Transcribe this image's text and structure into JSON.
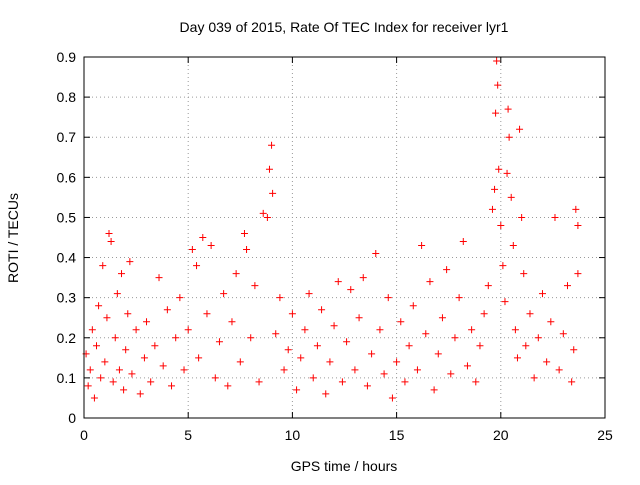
{
  "chart_data": {
    "type": "scatter",
    "title": "Day 039 of 2015, Rate Of TEC Index for receiver lyr1",
    "xlabel": "GPS time / hours",
    "ylabel": "ROTI / TECUs",
    "xlim": [
      0,
      25
    ],
    "ylim": [
      0,
      0.9
    ],
    "xticks": [
      "0",
      "5",
      "10",
      "15",
      "20",
      "25"
    ],
    "yticks": [
      "0",
      "0.1",
      "0.2",
      "0.3",
      "0.4",
      "0.5",
      "0.6",
      "0.7",
      "0.8",
      "0.9"
    ],
    "grid": true,
    "marker": "+",
    "color": "#ff0000",
    "note": "Dense scatter of ROTI samples through the day; representative sampled points listed.",
    "points": [
      [
        0.1,
        0.16
      ],
      [
        0.2,
        0.08
      ],
      [
        0.3,
        0.12
      ],
      [
        0.4,
        0.22
      ],
      [
        0.5,
        0.05
      ],
      [
        0.6,
        0.18
      ],
      [
        0.7,
        0.28
      ],
      [
        0.8,
        0.1
      ],
      [
        0.9,
        0.38
      ],
      [
        1.0,
        0.14
      ],
      [
        1.1,
        0.25
      ],
      [
        1.2,
        0.46
      ],
      [
        1.3,
        0.44
      ],
      [
        1.4,
        0.09
      ],
      [
        1.5,
        0.2
      ],
      [
        1.6,
        0.31
      ],
      [
        1.7,
        0.12
      ],
      [
        1.8,
        0.36
      ],
      [
        1.9,
        0.07
      ],
      [
        2.0,
        0.17
      ],
      [
        2.1,
        0.26
      ],
      [
        2.2,
        0.39
      ],
      [
        2.3,
        0.11
      ],
      [
        2.5,
        0.22
      ],
      [
        2.7,
        0.06
      ],
      [
        2.9,
        0.15
      ],
      [
        3.0,
        0.24
      ],
      [
        3.2,
        0.09
      ],
      [
        3.4,
        0.18
      ],
      [
        3.6,
        0.35
      ],
      [
        3.8,
        0.13
      ],
      [
        4.0,
        0.27
      ],
      [
        4.2,
        0.08
      ],
      [
        4.4,
        0.2
      ],
      [
        4.6,
        0.3
      ],
      [
        4.8,
        0.12
      ],
      [
        5.0,
        0.22
      ],
      [
        5.2,
        0.42
      ],
      [
        5.4,
        0.38
      ],
      [
        5.5,
        0.15
      ],
      [
        5.7,
        0.45
      ],
      [
        5.9,
        0.26
      ],
      [
        6.1,
        0.43
      ],
      [
        6.3,
        0.1
      ],
      [
        6.5,
        0.19
      ],
      [
        6.7,
        0.31
      ],
      [
        6.9,
        0.08
      ],
      [
        7.1,
        0.24
      ],
      [
        7.3,
        0.36
      ],
      [
        7.5,
        0.14
      ],
      [
        7.7,
        0.46
      ],
      [
        7.8,
        0.42
      ],
      [
        8.0,
        0.2
      ],
      [
        8.2,
        0.33
      ],
      [
        8.4,
        0.09
      ],
      [
        8.6,
        0.51
      ],
      [
        8.8,
        0.5
      ],
      [
        8.9,
        0.62
      ],
      [
        9.0,
        0.68
      ],
      [
        9.05,
        0.56
      ],
      [
        9.2,
        0.21
      ],
      [
        9.4,
        0.3
      ],
      [
        9.6,
        0.12
      ],
      [
        9.8,
        0.17
      ],
      [
        10.0,
        0.26
      ],
      [
        10.2,
        0.07
      ],
      [
        10.4,
        0.15
      ],
      [
        10.6,
        0.22
      ],
      [
        10.8,
        0.31
      ],
      [
        11.0,
        0.1
      ],
      [
        11.2,
        0.18
      ],
      [
        11.4,
        0.27
      ],
      [
        11.6,
        0.06
      ],
      [
        11.8,
        0.14
      ],
      [
        12.0,
        0.23
      ],
      [
        12.2,
        0.34
      ],
      [
        12.4,
        0.09
      ],
      [
        12.6,
        0.19
      ],
      [
        12.8,
        0.32
      ],
      [
        13.0,
        0.12
      ],
      [
        13.2,
        0.25
      ],
      [
        13.4,
        0.35
      ],
      [
        13.6,
        0.08
      ],
      [
        13.8,
        0.16
      ],
      [
        14.0,
        0.41
      ],
      [
        14.2,
        0.22
      ],
      [
        14.4,
        0.11
      ],
      [
        14.6,
        0.3
      ],
      [
        14.8,
        0.05
      ],
      [
        15.0,
        0.14
      ],
      [
        15.2,
        0.24
      ],
      [
        15.4,
        0.09
      ],
      [
        15.6,
        0.18
      ],
      [
        15.8,
        0.28
      ],
      [
        16.0,
        0.12
      ],
      [
        16.2,
        0.43
      ],
      [
        16.4,
        0.21
      ],
      [
        16.6,
        0.34
      ],
      [
        16.8,
        0.07
      ],
      [
        17.0,
        0.16
      ],
      [
        17.2,
        0.25
      ],
      [
        17.4,
        0.37
      ],
      [
        17.6,
        0.11
      ],
      [
        17.8,
        0.2
      ],
      [
        18.0,
        0.3
      ],
      [
        18.2,
        0.44
      ],
      [
        18.4,
        0.13
      ],
      [
        18.6,
        0.22
      ],
      [
        18.8,
        0.09
      ],
      [
        19.0,
        0.18
      ],
      [
        19.2,
        0.26
      ],
      [
        19.4,
        0.33
      ],
      [
        19.6,
        0.52
      ],
      [
        19.7,
        0.57
      ],
      [
        19.75,
        0.76
      ],
      [
        19.8,
        0.89
      ],
      [
        19.85,
        0.83
      ],
      [
        19.9,
        0.62
      ],
      [
        20.0,
        0.48
      ],
      [
        20.1,
        0.38
      ],
      [
        20.2,
        0.29
      ],
      [
        20.3,
        0.61
      ],
      [
        20.35,
        0.77
      ],
      [
        20.4,
        0.7
      ],
      [
        20.5,
        0.55
      ],
      [
        20.6,
        0.43
      ],
      [
        20.7,
        0.22
      ],
      [
        20.8,
        0.15
      ],
      [
        20.9,
        0.72
      ],
      [
        21.0,
        0.5
      ],
      [
        21.1,
        0.36
      ],
      [
        21.2,
        0.18
      ],
      [
        21.4,
        0.26
      ],
      [
        21.6,
        0.1
      ],
      [
        21.8,
        0.2
      ],
      [
        22.0,
        0.31
      ],
      [
        22.2,
        0.14
      ],
      [
        22.4,
        0.24
      ],
      [
        22.6,
        0.5
      ],
      [
        22.8,
        0.12
      ],
      [
        23.0,
        0.21
      ],
      [
        23.2,
        0.33
      ],
      [
        23.4,
        0.09
      ],
      [
        23.5,
        0.17
      ],
      [
        23.6,
        0.52
      ],
      [
        23.7,
        0.48
      ],
      [
        23.7,
        0.36
      ]
    ]
  }
}
